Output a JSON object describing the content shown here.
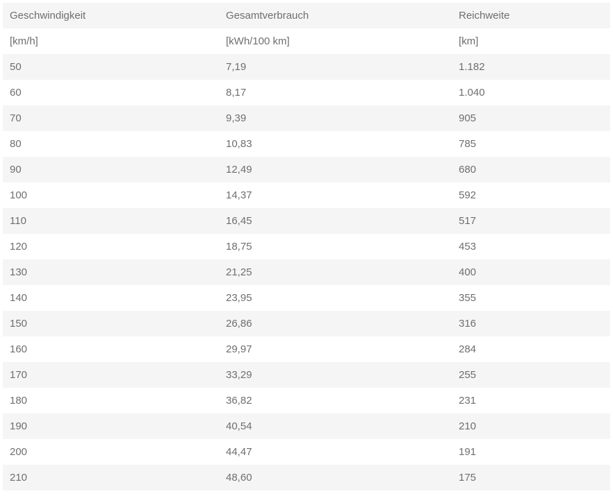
{
  "colors": {
    "stripe_row": "#f5f5f5",
    "plain_row": "#ffffff",
    "text": "#6e6e6e",
    "page_background": "#ffffff"
  },
  "table": {
    "columns": [
      {
        "label": "Geschwindigkeit",
        "unit": "[km/h]"
      },
      {
        "label": "Gesamtverbrauch",
        "unit": "[kWh/100 km]"
      },
      {
        "label": "Reichweite",
        "unit": "[km]"
      }
    ],
    "rows": [
      [
        "50",
        "7,19",
        "1.182"
      ],
      [
        "60",
        "8,17",
        "1.040"
      ],
      [
        "70",
        "9,39",
        "905"
      ],
      [
        "80",
        "10,83",
        "785"
      ],
      [
        "90",
        "12,49",
        "680"
      ],
      [
        "100",
        "14,37",
        "592"
      ],
      [
        "110",
        "16,45",
        "517"
      ],
      [
        "120",
        "18,75",
        "453"
      ],
      [
        "130",
        "21,25",
        "400"
      ],
      [
        "140",
        "23,95",
        "355"
      ],
      [
        "150",
        "26,86",
        "316"
      ],
      [
        "160",
        "29,97",
        "284"
      ],
      [
        "170",
        "33,29",
        "255"
      ],
      [
        "180",
        "36,82",
        "231"
      ],
      [
        "190",
        "40,54",
        "210"
      ],
      [
        "200",
        "44,47",
        "191"
      ],
      [
        "210",
        "48,60",
        "175"
      ]
    ]
  },
  "chart_data": {
    "type": "table",
    "title": "",
    "columns": [
      "Geschwindigkeit [km/h]",
      "Gesamtverbrauch [kWh/100 km]",
      "Reichweite [km]"
    ],
    "rows": [
      [
        50,
        7.19,
        1182
      ],
      [
        60,
        8.17,
        1040
      ],
      [
        70,
        9.39,
        905
      ],
      [
        80,
        10.83,
        785
      ],
      [
        90,
        12.49,
        680
      ],
      [
        100,
        14.37,
        592
      ],
      [
        110,
        16.45,
        517
      ],
      [
        120,
        18.75,
        453
      ],
      [
        130,
        21.25,
        400
      ],
      [
        140,
        23.95,
        355
      ],
      [
        150,
        26.86,
        316
      ],
      [
        160,
        29.97,
        284
      ],
      [
        170,
        33.29,
        255
      ],
      [
        180,
        36.82,
        231
      ],
      [
        190,
        40.54,
        210
      ],
      [
        200,
        44.47,
        191
      ],
      [
        210,
        48.6,
        175
      ]
    ],
    "notes": "Striped table, alternating light-gray/white rows starting with gray header row; decimal comma and thousands dot (German locale)."
  }
}
